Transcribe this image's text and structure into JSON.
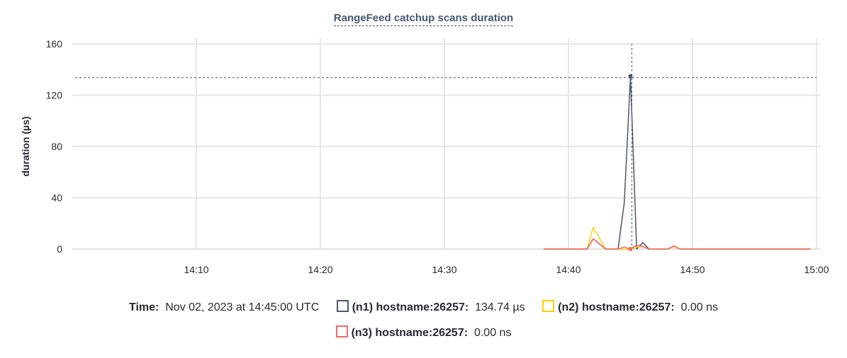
{
  "chart_data": {
    "type": "line",
    "title": "RangeFeed catchup scans duration",
    "ylabel": "duration (µs)",
    "xlabel": "",
    "ylim": [
      0,
      160
    ],
    "yticks": [
      "0",
      "40",
      "80",
      "120",
      "160"
    ],
    "xlim": [
      "14:00",
      "15:00"
    ],
    "xticks": [
      "14:10",
      "14:20",
      "14:30",
      "14:40",
      "14:50",
      "15:00"
    ],
    "grid": true,
    "hover_time": "14:45",
    "series": [
      {
        "name": "(n1) hostname:26257",
        "color": "#475872",
        "points": [
          [
            "14:38",
            0
          ],
          [
            "14:41.5",
            0
          ],
          [
            "14:42",
            8
          ],
          [
            "14:43",
            0
          ],
          [
            "14:44",
            0
          ],
          [
            "14:44.5",
            36
          ],
          [
            "14:45",
            134.74
          ],
          [
            "14:45.5",
            0
          ],
          [
            "14:46",
            5
          ],
          [
            "14:46.5",
            0
          ],
          [
            "14:48",
            0
          ],
          [
            "14:48.5",
            2
          ],
          [
            "14:49",
            0
          ],
          [
            "14:59.5",
            0
          ]
        ]
      },
      {
        "name": "(n2) hostname:26257",
        "color": "#ffcd02",
        "points": [
          [
            "14:38",
            0
          ],
          [
            "14:41.5",
            0
          ],
          [
            "14:42",
            17
          ],
          [
            "14:43",
            0
          ],
          [
            "14:45",
            0
          ],
          [
            "14:45.5",
            1.5
          ],
          [
            "14:46",
            2
          ],
          [
            "14:46.5",
            0
          ],
          [
            "14:48",
            0
          ],
          [
            "14:48.5",
            2
          ],
          [
            "14:49",
            0
          ],
          [
            "14:59.5",
            0
          ]
        ]
      },
      {
        "name": "(n3) hostname:26257",
        "color": "#f16969",
        "points": [
          [
            "14:38",
            0
          ],
          [
            "14:41.5",
            0
          ],
          [
            "14:42",
            8
          ],
          [
            "14:43",
            0
          ],
          [
            "14:44",
            0
          ],
          [
            "14:44.5",
            1.6
          ],
          [
            "14:45",
            0
          ],
          [
            "14:45.5",
            3
          ],
          [
            "14:46",
            2
          ],
          [
            "14:46.5",
            0
          ],
          [
            "14:48",
            0
          ],
          [
            "14:48.5",
            2.5
          ],
          [
            "14:49",
            0
          ],
          [
            "14:59.5",
            0
          ]
        ]
      }
    ]
  },
  "legend": {
    "time_label": "Time:",
    "time_value": "Nov 02, 2023 at 14:45:00 UTC",
    "items": [
      {
        "name": "(n1) hostname:26257:",
        "value": "134.74 µs",
        "color": "#475872"
      },
      {
        "name": "(n2) hostname:26257:",
        "value": "0.00 ns",
        "color": "#ffcd02"
      },
      {
        "name": "(n3) hostname:26257:",
        "value": "0.00 ns",
        "color": "#f16969"
      }
    ]
  }
}
